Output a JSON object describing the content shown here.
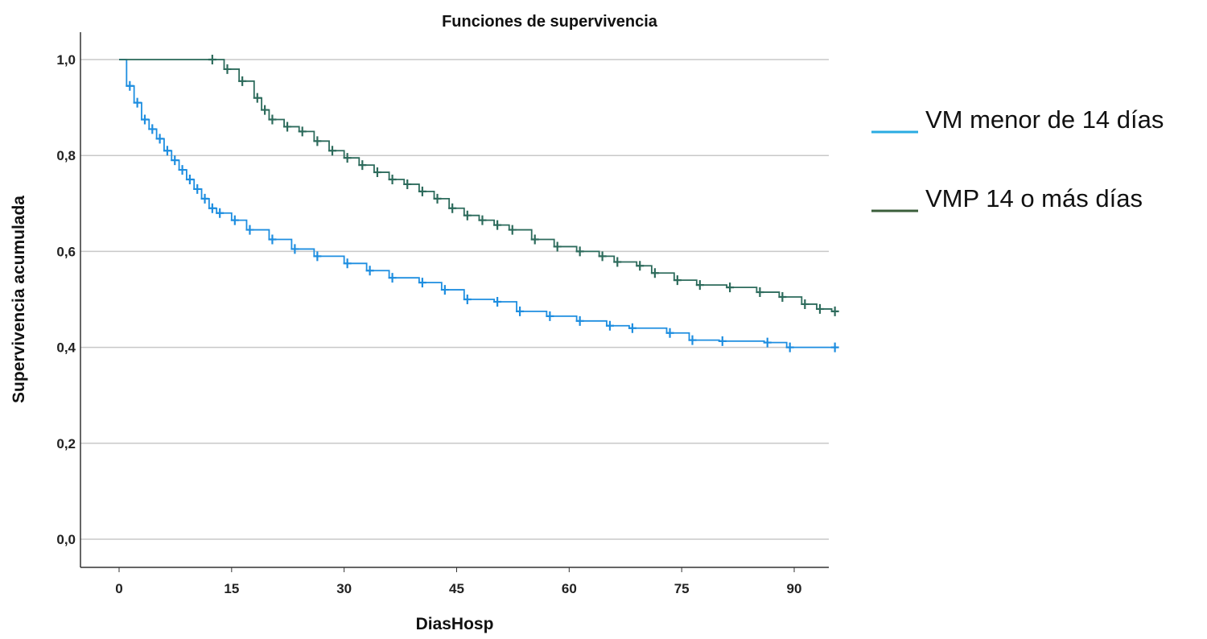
{
  "chart_data": {
    "type": "line",
    "subtype": "kaplan-meier step",
    "title": "Funciones de supervivencia",
    "xlabel": "DiasHosp",
    "ylabel": "Supervivencia acumulada",
    "xlim": [
      -3,
      95
    ],
    "ylim": [
      -0.05,
      1.05
    ],
    "xticks": [
      0,
      15,
      30,
      45,
      60,
      75,
      90
    ],
    "xtick_labels": [
      "0",
      "15",
      "30",
      "45",
      "60",
      "75",
      "90"
    ],
    "yticks": [
      0,
      0.2,
      0.4,
      0.6,
      0.8,
      1.0
    ],
    "ytick_labels": [
      "0,0",
      "0,2",
      "0,4",
      "0,6",
      "0,8",
      "1,0"
    ],
    "grid": "horizontal",
    "legend_position": "right",
    "series": [
      {
        "name": "VM menor de 14 días",
        "color": "#1e8ee0",
        "legend_color": "#29abe2",
        "x": [
          0,
          1,
          2,
          3,
          4,
          5,
          6,
          7,
          8,
          9,
          10,
          11,
          12,
          13,
          15,
          17,
          20,
          23,
          26,
          30,
          33,
          36,
          40,
          43,
          46,
          50,
          53,
          57,
          61,
          65,
          68,
          73,
          76,
          80,
          86,
          89,
          95
        ],
        "y": [
          1.0,
          0.945,
          0.91,
          0.875,
          0.855,
          0.835,
          0.81,
          0.79,
          0.77,
          0.75,
          0.73,
          0.71,
          0.69,
          0.68,
          0.665,
          0.645,
          0.625,
          0.605,
          0.59,
          0.575,
          0.56,
          0.545,
          0.535,
          0.52,
          0.5,
          0.495,
          0.475,
          0.465,
          0.455,
          0.445,
          0.44,
          0.43,
          0.415,
          0.413,
          0.41,
          0.4,
          0.4
        ]
      },
      {
        "name": "VMP 14 o más días",
        "color": "#2d6b5c",
        "legend_color": "#3b5e3b",
        "x": [
          0,
          12,
          14,
          16,
          18,
          19,
          20,
          22,
          24,
          26,
          28,
          30,
          32,
          34,
          36,
          38,
          40,
          42,
          44,
          46,
          48,
          50,
          52,
          55,
          58,
          61,
          64,
          66,
          69,
          71,
          74,
          77,
          81,
          85,
          88,
          91,
          93,
          95
        ],
        "y": [
          1.0,
          1.0,
          0.98,
          0.955,
          0.92,
          0.895,
          0.875,
          0.86,
          0.85,
          0.83,
          0.81,
          0.795,
          0.78,
          0.765,
          0.75,
          0.74,
          0.725,
          0.71,
          0.69,
          0.675,
          0.665,
          0.655,
          0.645,
          0.625,
          0.61,
          0.6,
          0.59,
          0.578,
          0.57,
          0.555,
          0.54,
          0.53,
          0.525,
          0.515,
          0.505,
          0.49,
          0.48,
          0.475
        ]
      }
    ]
  }
}
